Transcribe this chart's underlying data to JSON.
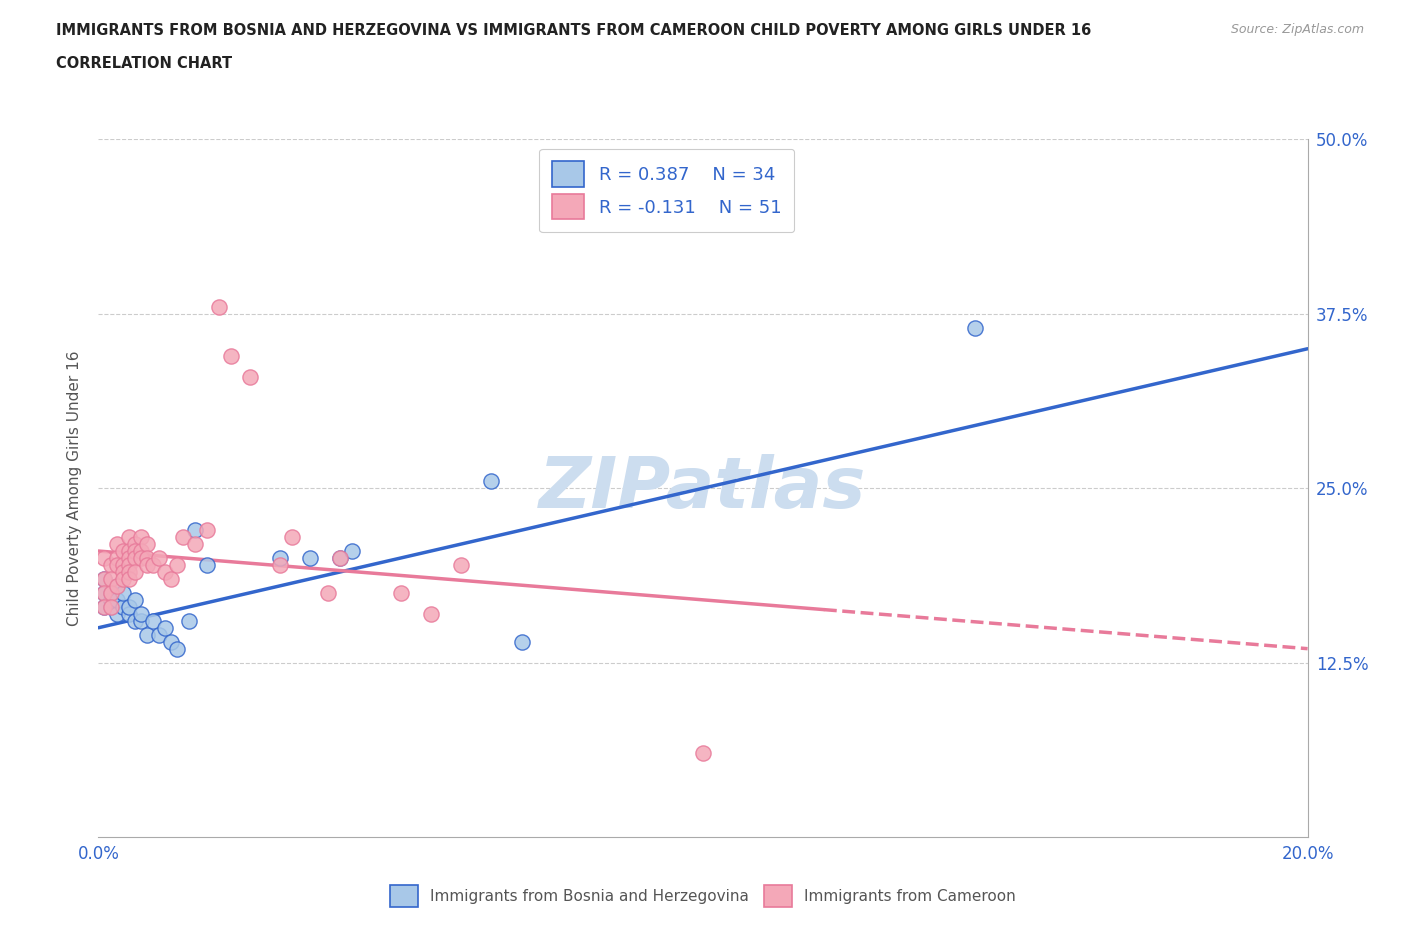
{
  "title_line1": "IMMIGRANTS FROM BOSNIA AND HERZEGOVINA VS IMMIGRANTS FROM CAMEROON CHILD POVERTY AMONG GIRLS UNDER 16",
  "title_line2": "CORRELATION CHART",
  "source_text": "Source: ZipAtlas.com",
  "ylabel_text": "Child Poverty Among Girls Under 16",
  "x_min": 0.0,
  "x_max": 0.2,
  "y_min": 0.0,
  "y_max": 0.5,
  "x_ticks": [
    0.0,
    0.2
  ],
  "x_tick_labels": [
    "0.0%",
    "20.0%"
  ],
  "y_ticks": [
    0.0,
    0.125,
    0.25,
    0.375,
    0.5
  ],
  "y_tick_labels": [
    "",
    "12.5%",
    "25.0%",
    "37.5%",
    "50.0%"
  ],
  "bosnia_R": 0.387,
  "bosnia_N": 34,
  "cameroon_R": -0.131,
  "cameroon_N": 51,
  "bosnia_color": "#a8c8e8",
  "cameroon_color": "#f4a8b8",
  "bosnia_line_color": "#3366cc",
  "cameroon_line_color": "#e87a9a",
  "watermark_color": "#ccddef",
  "legend_label_1": "R = 0.387    N = 34",
  "legend_label_2": "R = -0.131    N = 51",
  "bottom_legend_1": "Immigrants from Bosnia and Herzegovina",
  "bottom_legend_2": "Immigrants from Cameroon",
  "bosnia_scatter_x": [
    0.001,
    0.001,
    0.001,
    0.002,
    0.002,
    0.002,
    0.003,
    0.003,
    0.003,
    0.004,
    0.004,
    0.005,
    0.005,
    0.006,
    0.006,
    0.007,
    0.007,
    0.008,
    0.009,
    0.01,
    0.011,
    0.012,
    0.013,
    0.015,
    0.016,
    0.018,
    0.03,
    0.035,
    0.04,
    0.042,
    0.065,
    0.07,
    0.11,
    0.145
  ],
  "bosnia_scatter_y": [
    0.175,
    0.185,
    0.165,
    0.17,
    0.175,
    0.165,
    0.18,
    0.16,
    0.17,
    0.165,
    0.175,
    0.16,
    0.165,
    0.17,
    0.155,
    0.155,
    0.16,
    0.145,
    0.155,
    0.145,
    0.15,
    0.14,
    0.135,
    0.155,
    0.22,
    0.195,
    0.2,
    0.2,
    0.2,
    0.205,
    0.255,
    0.14,
    0.44,
    0.365
  ],
  "cameroon_scatter_x": [
    0.001,
    0.001,
    0.001,
    0.001,
    0.002,
    0.002,
    0.002,
    0.002,
    0.003,
    0.003,
    0.003,
    0.003,
    0.004,
    0.004,
    0.004,
    0.004,
    0.005,
    0.005,
    0.005,
    0.005,
    0.005,
    0.005,
    0.006,
    0.006,
    0.006,
    0.006,
    0.007,
    0.007,
    0.007,
    0.008,
    0.008,
    0.008,
    0.009,
    0.01,
    0.011,
    0.012,
    0.013,
    0.014,
    0.016,
    0.018,
    0.02,
    0.022,
    0.025,
    0.03,
    0.032,
    0.038,
    0.04,
    0.05,
    0.055,
    0.06,
    0.1
  ],
  "cameroon_scatter_y": [
    0.2,
    0.185,
    0.175,
    0.165,
    0.195,
    0.185,
    0.175,
    0.165,
    0.21,
    0.2,
    0.195,
    0.18,
    0.205,
    0.195,
    0.19,
    0.185,
    0.215,
    0.205,
    0.2,
    0.195,
    0.19,
    0.185,
    0.21,
    0.205,
    0.2,
    0.19,
    0.215,
    0.205,
    0.2,
    0.21,
    0.2,
    0.195,
    0.195,
    0.2,
    0.19,
    0.185,
    0.195,
    0.215,
    0.21,
    0.22,
    0.38,
    0.345,
    0.33,
    0.195,
    0.215,
    0.175,
    0.2,
    0.175,
    0.16,
    0.195,
    0.06
  ]
}
